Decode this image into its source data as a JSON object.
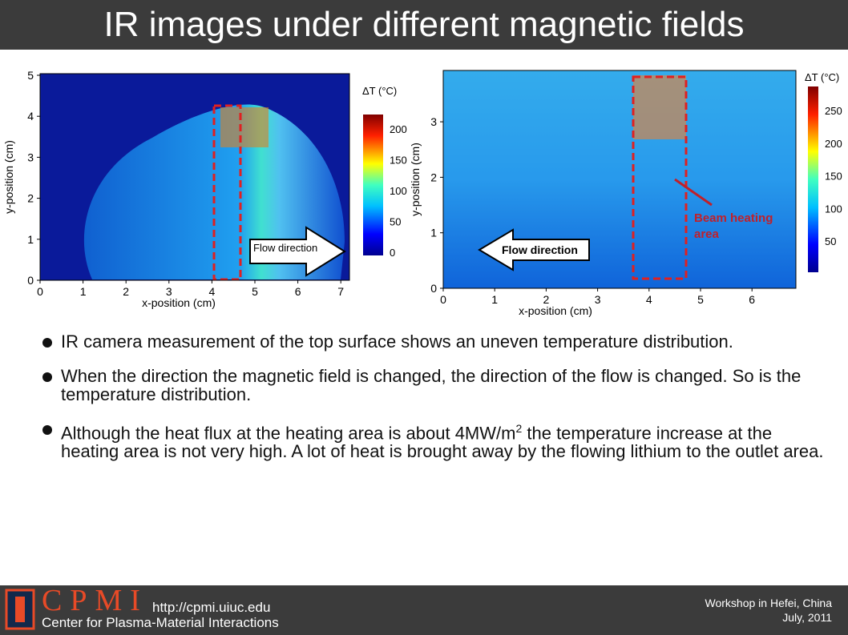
{
  "title": "IR images under different magnetic fields",
  "figures": [
    {
      "x_label": "x-position (cm)",
      "y_label": "y-position (cm)",
      "x_ticks": [
        "0",
        "1",
        "2",
        "3",
        "4",
        "5",
        "6",
        "7"
      ],
      "y_ticks": [
        "0",
        "1",
        "2",
        "3",
        "4",
        "5"
      ],
      "colorbar_title": "ΔT (°C)",
      "colorbar_ticks": [
        "0",
        "50",
        "100",
        "150",
        "200"
      ],
      "annotations": [
        "Flow direction"
      ]
    },
    {
      "x_label": "x-position (cm)",
      "y_label": "y-position (cm)",
      "x_ticks": [
        "0",
        "1",
        "2",
        "3",
        "4",
        "5",
        "6"
      ],
      "y_ticks": [
        "0",
        "1",
        "2",
        "3"
      ],
      "colorbar_title": "ΔT (°C)",
      "colorbar_ticks": [
        "50",
        "100",
        "150",
        "200",
        "250"
      ],
      "annotations": [
        "Flow direction",
        "Beam heating area"
      ]
    }
  ],
  "bullets": [
    "IR camera measurement of the top surface shows an uneven temperature distribution.",
    "When the direction the magnetic field is changed, the direction of the flow is changed. So is the temperature distribution.",
    {
      "before": "Although the heat flux at the heating area is about 4MW/m",
      "sup": "2",
      "after": " the temperature increase at the heating area is not very high. A lot of heat is brought away by the flowing lithium to the outlet area."
    }
  ],
  "footer": {
    "logo": "CPMI",
    "url": "http://cpmi.uiuc.edu",
    "org": "Center for Plasma-Material Interactions",
    "event": "Workshop in Hefei, China",
    "date": "July, 2011"
  }
}
